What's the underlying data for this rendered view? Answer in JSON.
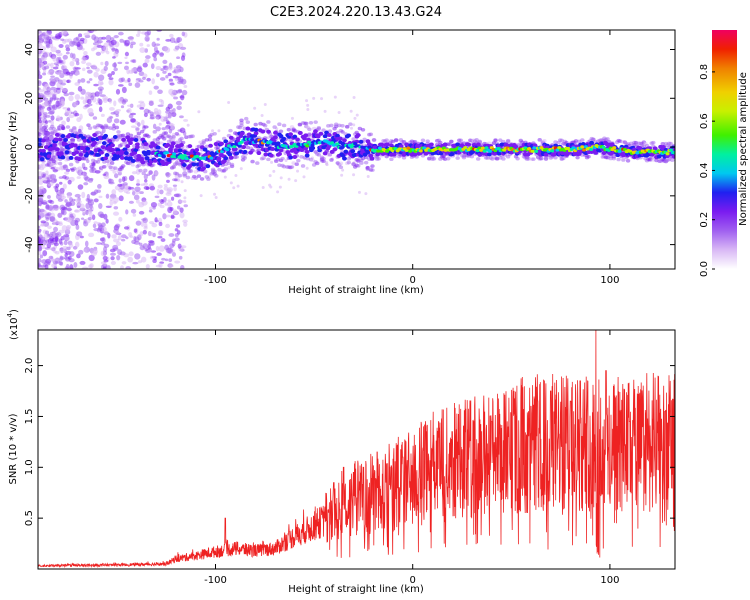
{
  "title": "C2E3.2024.220.13.43.G24",
  "colors": {
    "snr_line": "#ee2222",
    "frame": "#000000"
  },
  "chart_data": [
    {
      "type": "heatmap",
      "xlabel": "Height of straight line (km)",
      "ylabel": "Frequency (Hz)",
      "xlim": [
        -190,
        133
      ],
      "ylim": [
        -50,
        48
      ],
      "x_ticks": [
        -100,
        0,
        100
      ],
      "x_tick_labels": [
        "-100",
        "0",
        "100"
      ],
      "y_ticks": [
        -40,
        -20,
        0,
        20,
        40
      ],
      "y_tick_labels": [
        "-40",
        "-20",
        "0",
        "20",
        "40"
      ],
      "grid": false,
      "colorbar": {
        "label": "Normalized spectral amplitude",
        "range": [
          0,
          0.97
        ],
        "ticks": [
          0.0,
          0.2,
          0.4,
          0.6,
          0.8
        ],
        "tick_labels": [
          "0.0",
          "0.2",
          "0.4",
          "0.6",
          "0.8"
        ],
        "colormap": [
          "#ffffff",
          "#d9b8f5",
          "#a060f0",
          "#7a1cf0",
          "#2020f0",
          "#00c8f0",
          "#00f0a0",
          "#40f000",
          "#c8f000",
          "#f0d000",
          "#f08000",
          "#f02000",
          "#f00060"
        ]
      },
      "ridge": {
        "description_free": true,
        "x": [
          -190,
          -170,
          -150,
          -135,
          -125,
          -115,
          -105,
          -95,
          -85,
          -75,
          -65,
          -55,
          -45,
          -35,
          -30,
          -25,
          -20,
          -10,
          0,
          20,
          40,
          60,
          80,
          95,
          110,
          133
        ],
        "y": [
          0,
          0,
          0,
          -2,
          -3,
          -4,
          -5,
          -1,
          3,
          2,
          0,
          1,
          2,
          0,
          1,
          0,
          -1,
          -1,
          -1,
          -1,
          -1,
          -1,
          -1,
          0,
          -2,
          -2
        ]
      }
    },
    {
      "type": "line",
      "xlabel": "Height of straight line (km)",
      "ylabel": "SNR (10 * v/v)",
      "y_multiplier": "(x10",
      "y_multiplier_exp": "4",
      "y_multiplier_close": ")",
      "xlim": [
        -190,
        133
      ],
      "ylim": [
        0,
        2.35
      ],
      "x_ticks": [
        -100,
        0,
        100
      ],
      "x_tick_labels": [
        "-100",
        "0",
        "100"
      ],
      "y_ticks": [
        0.5,
        1.0,
        1.5,
        2.0
      ],
      "y_tick_labels": [
        "0.5",
        "1.0",
        "1.5",
        "2.0"
      ],
      "grid": false,
      "series": [
        {
          "envelope_x": [
            -190,
            -150,
            -125,
            -120,
            -110,
            -100,
            -90,
            -80,
            -70,
            -60,
            -50,
            -45,
            -40,
            -35,
            -30,
            -25,
            -20,
            -15,
            -10,
            0,
            10,
            20,
            30,
            40,
            50,
            60,
            70,
            80,
            90,
            95,
            100,
            110,
            120,
            133
          ],
          "envelope_y": [
            0.03,
            0.04,
            0.05,
            0.1,
            0.13,
            0.17,
            0.2,
            0.18,
            0.2,
            0.32,
            0.42,
            0.48,
            0.55,
            0.62,
            0.68,
            0.72,
            0.74,
            0.78,
            0.82,
            0.9,
            0.98,
            1.05,
            1.1,
            1.15,
            1.18,
            1.2,
            1.22,
            1.24,
            1.25,
            1.2,
            1.18,
            1.2,
            1.22,
            1.25
          ],
          "spikes": [
            [
              -95,
              0.5
            ],
            [
              -40,
              0.85
            ],
            [
              -35,
              1.0
            ],
            [
              -30,
              0.95
            ],
            [
              -25,
              1.0
            ],
            [
              -18,
              1.15
            ],
            [
              -5,
              1.1
            ],
            [
              20,
              1.35
            ],
            [
              40,
              1.45
            ],
            [
              60,
              1.6
            ],
            [
              70,
              1.75
            ],
            [
              80,
              1.65
            ],
            [
              85,
              1.85
            ],
            [
              93,
              2.35
            ],
            [
              98,
              1.95
            ],
            [
              110,
              1.45
            ],
            [
              128,
              1.55
            ]
          ]
        }
      ]
    }
  ]
}
